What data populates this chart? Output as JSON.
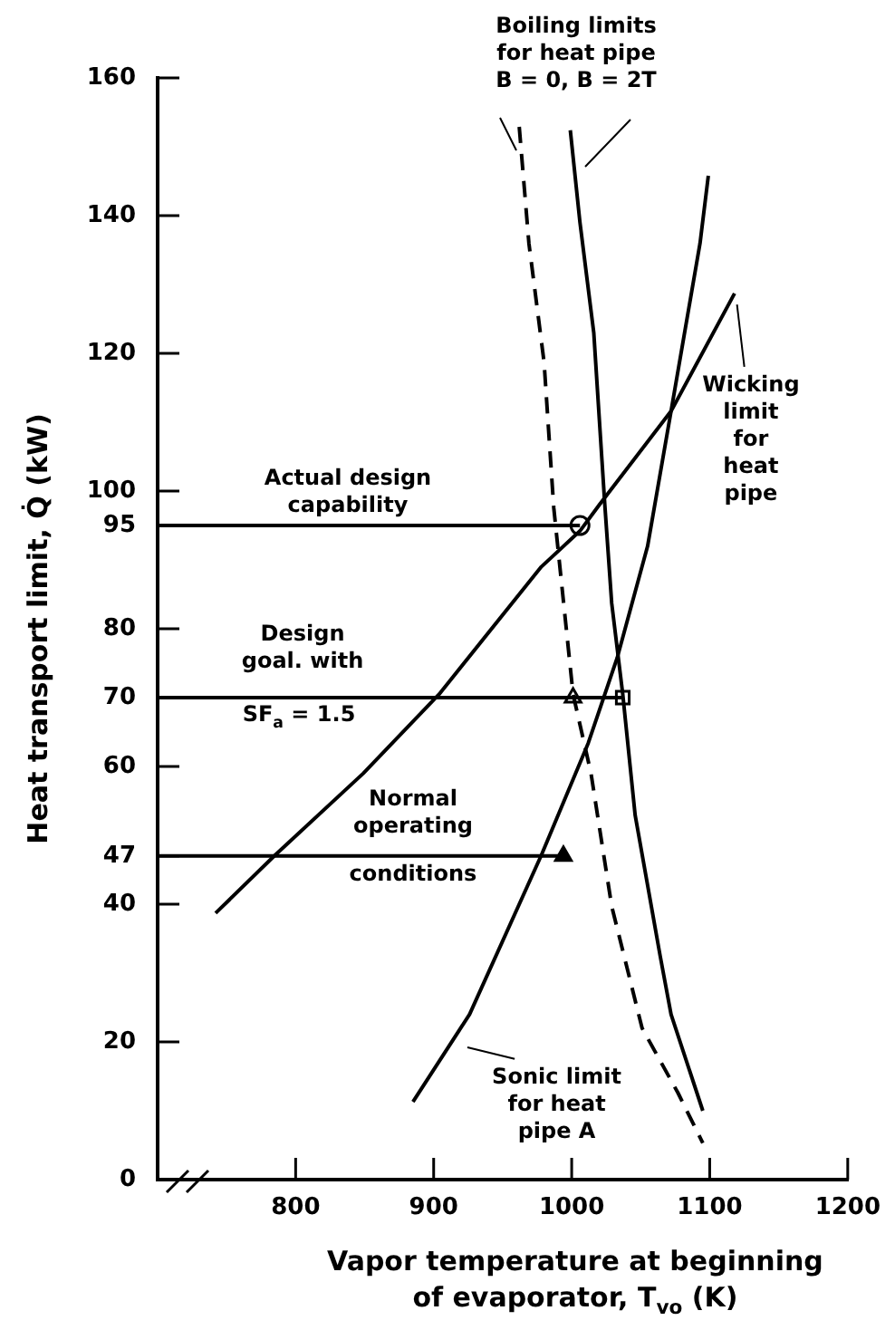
{
  "chart_data": {
    "type": "line",
    "xlabel": "Vapor temperature at beginning\nof evaporator, T$_{vo}$ (K)",
    "ylabel": "Heat transport limit, Q̇ (kW)",
    "xlim": [
      700,
      1200
    ],
    "xticks": [
      800,
      900,
      1000,
      1100,
      1200
    ],
    "ylim": [
      0,
      160
    ],
    "yticks": [
      0,
      20,
      40,
      47,
      60,
      70,
      80,
      95,
      100,
      120,
      140,
      160
    ],
    "grid": false,
    "legend": false,
    "series": [
      {
        "color": "#000000",
        "line_style": "solid",
        "marker": "none",
        "x": [
          742,
          785,
          849,
          904,
          978,
          1006,
          1020,
          1072,
          1118
        ],
        "values": [
          38.7,
          47.1,
          59,
          70.5,
          89,
          94.2,
          98,
          111.6,
          128.7
        ]
      },
      {
        "color": "#000000",
        "line_style": "solid",
        "marker": "none",
        "x": [
          885,
          926,
          978,
          1012,
          1033,
          1055,
          1072,
          1093,
          1099
        ],
        "values": [
          11.3,
          24,
          47.1,
          63.4,
          75.8,
          92,
          111.6,
          136,
          145.8
        ]
      },
      {
        "color": "#000000",
        "line_style": "solid",
        "marker": "none",
        "x": [
          999,
          1006,
          1016,
          1024,
          1029,
          1037,
          1046,
          1064,
          1072,
          1095
        ],
        "values": [
          152.4,
          139,
          123,
          98,
          83.7,
          70.5,
          52.9,
          32.6,
          24,
          10
        ]
      },
      {
        "color": "#000000",
        "line_style": "dashed",
        "marker": "none",
        "x": [
          962,
          969,
          980,
          987,
          1001,
          1014,
          1029,
          1051,
          1077,
          1095
        ],
        "values": [
          152.9,
          136,
          118.7,
          97.6,
          70.5,
          59,
          39.7,
          22,
          12.6,
          5.3
        ]
      },
      {
        "color": "#000000",
        "line_style": "solid",
        "marker": "none",
        "x": [
          700,
          1006
        ],
        "values": [
          95,
          95
        ]
      },
      {
        "color": "#000000",
        "line_style": "solid",
        "marker": "none",
        "x": [
          700,
          1037
        ],
        "values": [
          70,
          70
        ]
      },
      {
        "color": "#000000",
        "line_style": "solid",
        "marker": "none",
        "x": [
          700,
          994
        ],
        "values": [
          47,
          47
        ]
      },
      {
        "type": "scatter",
        "color": "#ffffff",
        "marker": "circle",
        "x": [
          1006
        ],
        "values": [
          95
        ]
      },
      {
        "type": "scatter",
        "color": "#ffffff",
        "marker": "triangle",
        "x": [
          1001
        ],
        "values": [
          70
        ]
      },
      {
        "type": "scatter",
        "color": "#ffffff",
        "marker": "square",
        "x": [
          1037
        ],
        "values": [
          70
        ]
      },
      {
        "type": "scatter",
        "color": "#000000",
        "marker": "triangle",
        "x": [
          994
        ],
        "values": [
          47
        ]
      }
    ],
    "annotations": [
      "Boiling limits\nfor heat pipe\nB = 0, B = 2T",
      {
        "text": "Wicking\nlimit\nfor\nheat\npipe",
        "x": 1118,
        "y": 128.7
      },
      "Actual design\ncapability",
      "Design\ngoal. with",
      "SF$_{a}$ = 1.5",
      "Normal\noperating",
      "conditions",
      {
        "text": "Sonic limit\nfor heat\npipe A",
        "x": 913,
        "y": 19.5
      }
    ]
  }
}
